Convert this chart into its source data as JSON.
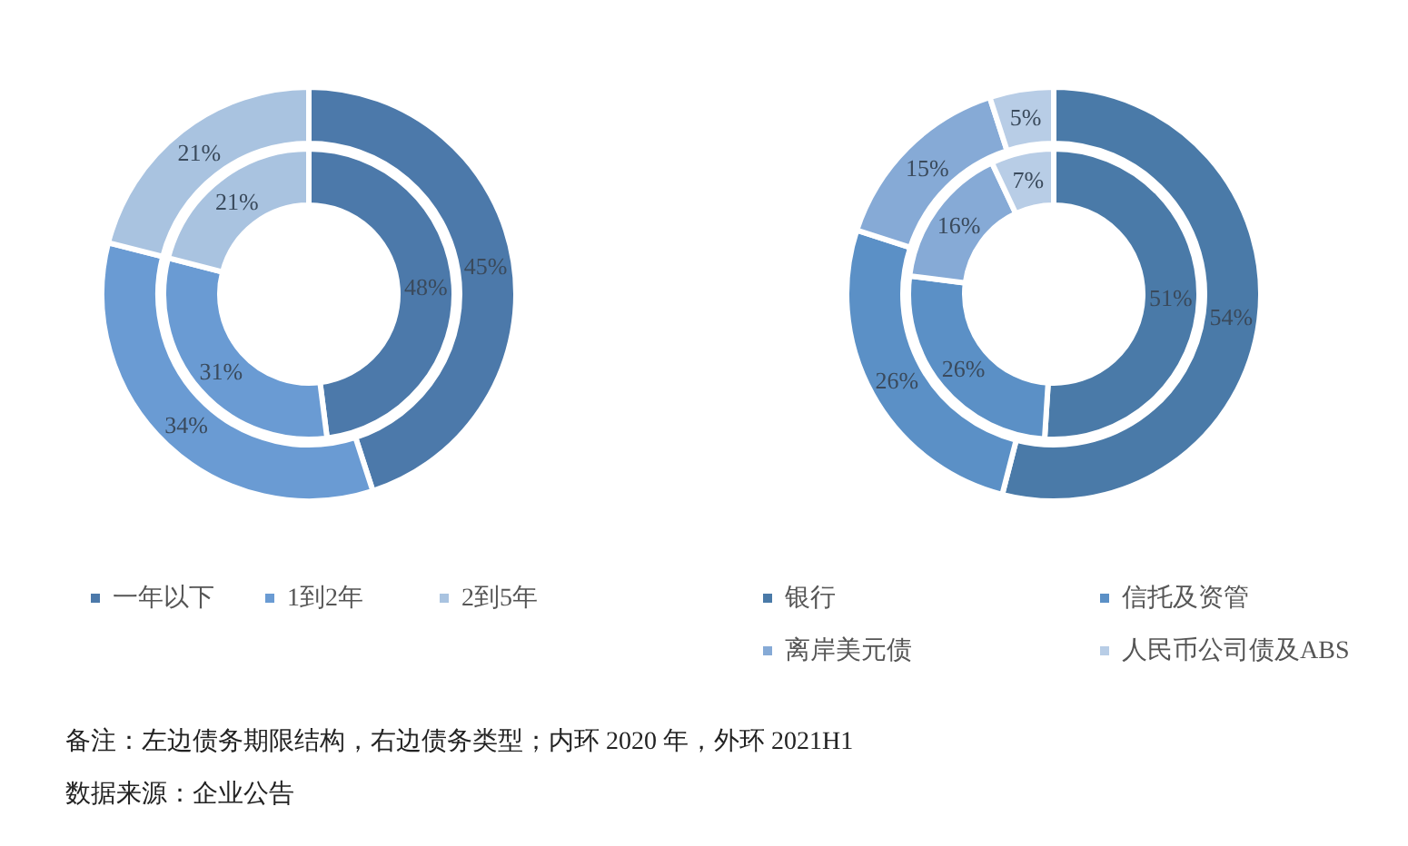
{
  "chart_data": [
    {
      "type": "donut",
      "categories": [
        "一年以下",
        "1到2年",
        "2到5年"
      ],
      "colors": [
        "#4c79aa",
        "#6a9bd3",
        "#a9c3e0"
      ],
      "series": [
        {
          "values": [
            48,
            31,
            21
          ],
          "value_labels": [
            "48%",
            "31%",
            "21%"
          ]
        },
        {
          "values": [
            45,
            34,
            21
          ],
          "value_labels": [
            "45%",
            "34%",
            "21%"
          ]
        }
      ],
      "legend": "bottom",
      "annotations": [
        "备注：左边债务期限结构，右边债务类型；内环 2020 年，外环 2021H1",
        "数据来源：企业公告"
      ]
    },
    {
      "type": "donut",
      "categories": [
        "银行",
        "信托及资管",
        "离岸美元债",
        "人民币公司债及ABS"
      ],
      "colors": [
        "#4a7aa8",
        "#5b90c6",
        "#86aad6",
        "#b8cde6"
      ],
      "series": [
        {
          "values": [
            51,
            26,
            16,
            7
          ],
          "value_labels": [
            "51%",
            "26%",
            "16%",
            "7%"
          ]
        },
        {
          "values": [
            54,
            26,
            15,
            5
          ],
          "value_labels": [
            "54%",
            "26%",
            "15%",
            "5%"
          ]
        }
      ],
      "legend": "bottom"
    }
  ]
}
